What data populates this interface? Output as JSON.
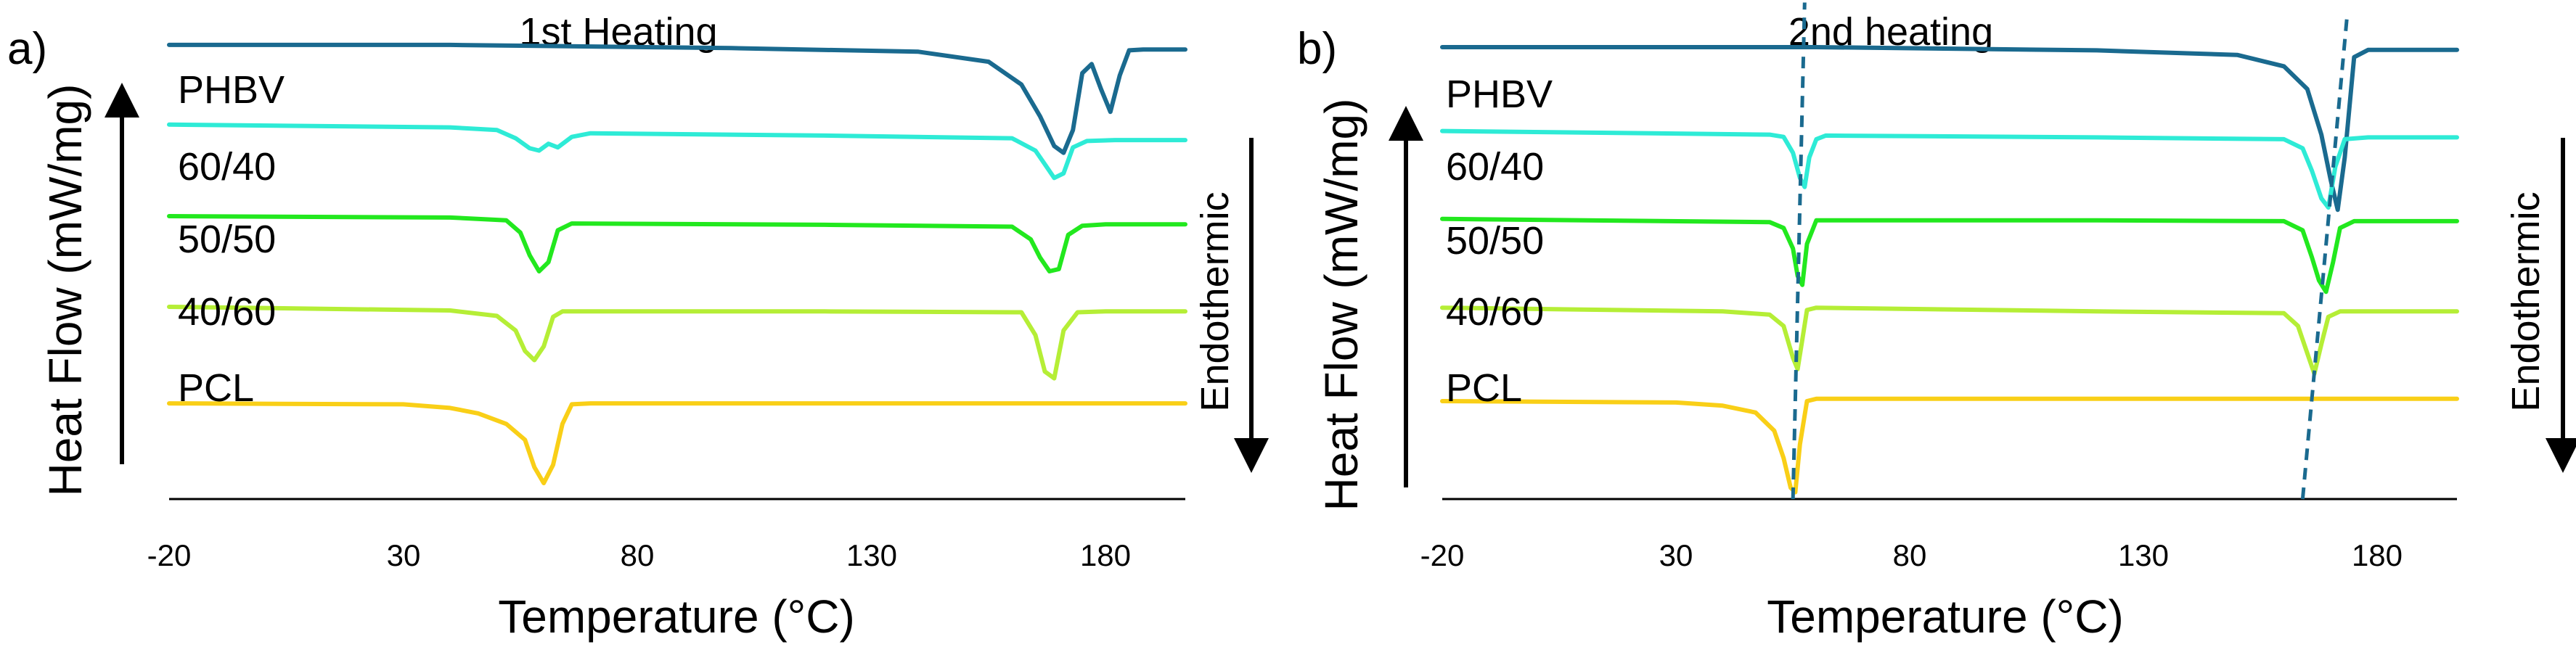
{
  "figure": {
    "x_tick_values": [
      -20,
      30,
      80,
      130,
      180
    ],
    "x_tick_labels": [
      "-20",
      "30",
      "80",
      "130",
      "180"
    ],
    "y_axis_title": "Heat Flow (mW/mg)",
    "x_axis_title": "Temperature (°C)",
    "side_arrow_label": "Endothermic"
  },
  "series_colors": {
    "PHBV": "#1A6A8F",
    "60/40": "#2EEBD6",
    "50/50": "#22E81E",
    "40/60": "#B5EE36",
    "PCL": "#F9CF17"
  },
  "guide_color": "#1A6A8F",
  "chart_data": [
    {
      "type": "line",
      "panel_label": "a)",
      "title": "1st Heating",
      "xlabel": "Temperature (°C)",
      "ylabel": "Heat Flow (mW/mg)",
      "xlim": [
        -20,
        197
      ],
      "ylim": [
        0,
        10
      ],
      "grid": false,
      "y_ticks_shown": false,
      "annotation": "Endothermic",
      "series": [
        {
          "name": "PHBV",
          "x": [
            -20,
            40,
            100,
            140,
            155,
            162,
            166,
            169,
            171,
            173,
            175,
            177,
            179,
            181,
            183,
            185,
            188,
            197
          ],
          "y": [
            9.97,
            9.97,
            9.9,
            9.82,
            9.6,
            9.1,
            8.4,
            7.75,
            7.6,
            8.1,
            9.35,
            9.55,
            9.0,
            8.5,
            9.3,
            9.85,
            9.87,
            9.87
          ]
        },
        {
          "name": "60/40",
          "x": [
            -20,
            40,
            50,
            54,
            57,
            59,
            61,
            63,
            66,
            70,
            120,
            160,
            165,
            167,
            169,
            171,
            173,
            176,
            182,
            197
          ],
          "y": [
            8.22,
            8.16,
            8.1,
            7.92,
            7.7,
            7.65,
            7.8,
            7.72,
            7.95,
            8.03,
            7.98,
            7.92,
            7.65,
            7.35,
            7.05,
            7.15,
            7.72,
            7.86,
            7.88,
            7.88
          ]
        },
        {
          "name": "50/50",
          "x": [
            -20,
            40,
            52,
            55,
            57,
            59,
            61,
            63,
            66,
            120,
            160,
            164,
            166,
            168,
            170,
            172,
            175,
            180,
            197
          ],
          "y": [
            6.21,
            6.18,
            6.12,
            5.85,
            5.35,
            5.0,
            5.2,
            5.9,
            6.05,
            6.02,
            5.98,
            5.7,
            5.3,
            5.0,
            5.05,
            5.8,
            6.0,
            6.03,
            6.03
          ]
        },
        {
          "name": "40/60",
          "x": [
            -20,
            40,
            50,
            54,
            56,
            58,
            60,
            62,
            64,
            120,
            162,
            165,
            167,
            169,
            171,
            174,
            180,
            197
          ],
          "y": [
            4.22,
            4.14,
            4.02,
            3.7,
            3.25,
            3.05,
            3.35,
            4.0,
            4.12,
            4.12,
            4.1,
            3.6,
            2.8,
            2.65,
            3.7,
            4.1,
            4.12,
            4.12
          ]
        },
        {
          "name": "PCL",
          "x": [
            -20,
            30,
            40,
            46,
            52,
            56,
            58,
            60,
            62,
            64,
            66,
            70,
            120,
            197
          ],
          "y": [
            2.1,
            2.08,
            2.0,
            1.88,
            1.65,
            1.3,
            0.7,
            0.35,
            0.75,
            1.65,
            2.08,
            2.1,
            2.1,
            2.1
          ]
        }
      ]
    },
    {
      "type": "line",
      "panel_label": "b)",
      "title": "2nd heating",
      "xlabel": "Temperature (°C)",
      "ylabel": "Heat Flow (mW/mg)",
      "xlim": [
        -20,
        197
      ],
      "ylim": [
        0,
        10
      ],
      "grid": false,
      "y_ticks_shown": false,
      "annotation": "Endothermic",
      "guide_lines": [
        {
          "x1": 55,
          "y1": 0.0,
          "x2": 57.5,
          "y2": 10.9
        },
        {
          "x1": 164,
          "y1": 0.0,
          "x2": 173.5,
          "y2": 10.6
        }
      ],
      "series": [
        {
          "name": "PHBV",
          "x": [
            -20,
            60,
            120,
            150,
            160,
            165,
            168,
            170,
            171.5,
            173,
            175,
            178,
            197
          ],
          "y": [
            9.92,
            9.92,
            9.85,
            9.75,
            9.5,
            9.0,
            8.0,
            7.0,
            6.35,
            7.5,
            9.7,
            9.86,
            9.86
          ]
        },
        {
          "name": "60/40",
          "x": [
            -20,
            50,
            53,
            55,
            56.5,
            57.5,
            58.5,
            60,
            62,
            120,
            160,
            164,
            166,
            168,
            169.5,
            171,
            173,
            178,
            197
          ],
          "y": [
            8.08,
            8.0,
            7.95,
            7.6,
            7.05,
            6.85,
            7.5,
            7.9,
            7.98,
            7.94,
            7.9,
            7.7,
            7.2,
            6.6,
            6.4,
            7.3,
            7.9,
            7.94,
            7.94
          ]
        },
        {
          "name": "50/50",
          "x": [
            -20,
            50,
            53,
            55,
            56,
            57,
            58,
            60,
            120,
            160,
            164,
            166,
            167.5,
            169,
            170.5,
            172,
            175,
            197
          ],
          "y": [
            6.15,
            6.08,
            5.95,
            5.5,
            4.9,
            4.7,
            5.6,
            6.12,
            6.12,
            6.1,
            5.9,
            5.3,
            4.8,
            4.55,
            5.2,
            5.95,
            6.1,
            6.1
          ]
        },
        {
          "name": "40/60",
          "x": [
            -20,
            40,
            50,
            53,
            55,
            56,
            57,
            58,
            60,
            120,
            160,
            163,
            165,
            166.5,
            168,
            169.5,
            172,
            197
          ],
          "y": [
            4.2,
            4.12,
            4.05,
            3.8,
            3.1,
            2.85,
            3.5,
            4.15,
            4.2,
            4.12,
            4.08,
            3.8,
            3.2,
            2.75,
            3.4,
            4.0,
            4.12,
            4.12
          ]
        },
        {
          "name": "PCL",
          "x": [
            -20,
            30,
            40,
            47,
            51,
            53,
            54.5,
            55.5,
            56.5,
            58,
            60,
            120,
            197
          ],
          "y": [
            2.15,
            2.12,
            2.05,
            1.9,
            1.5,
            0.9,
            0.25,
            0.15,
            1.2,
            2.15,
            2.2,
            2.2,
            2.2
          ]
        }
      ]
    }
  ]
}
